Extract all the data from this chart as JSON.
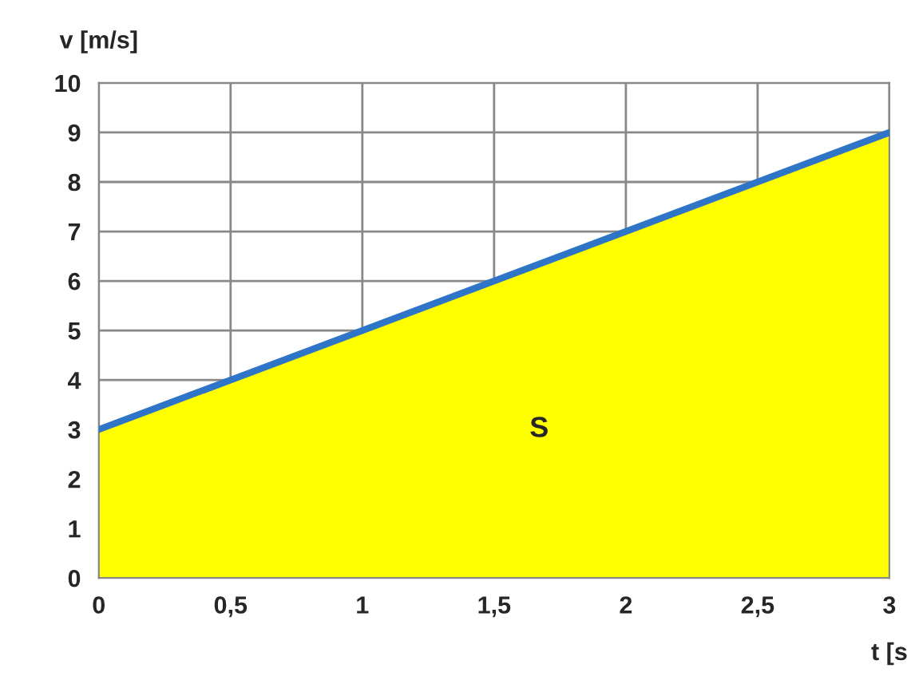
{
  "chart_data": {
    "type": "area",
    "xlabel": "t [s",
    "ylabel": "v [m/s]",
    "x": [
      0,
      3
    ],
    "series": [
      {
        "color": "#ffff00",
        "values": [
          3,
          9
        ]
      },
      {
        "type": "line",
        "color": "#2e75c8",
        "values": [
          3,
          9
        ]
      }
    ],
    "xlim": [
      0,
      3
    ],
    "ylim": [
      0,
      10
    ],
    "xticks": [
      0,
      {
        "value": 0.5,
        "label": "0,5"
      },
      1,
      {
        "value": 1.5,
        "label": "1,5"
      },
      2,
      {
        "value": 2.5,
        "label": "2,5"
      },
      3
    ],
    "yticks": [
      0,
      1,
      2,
      3,
      4,
      5,
      6,
      7,
      8,
      9,
      10
    ],
    "grid": true,
    "annotations": [
      "S"
    ]
  }
}
